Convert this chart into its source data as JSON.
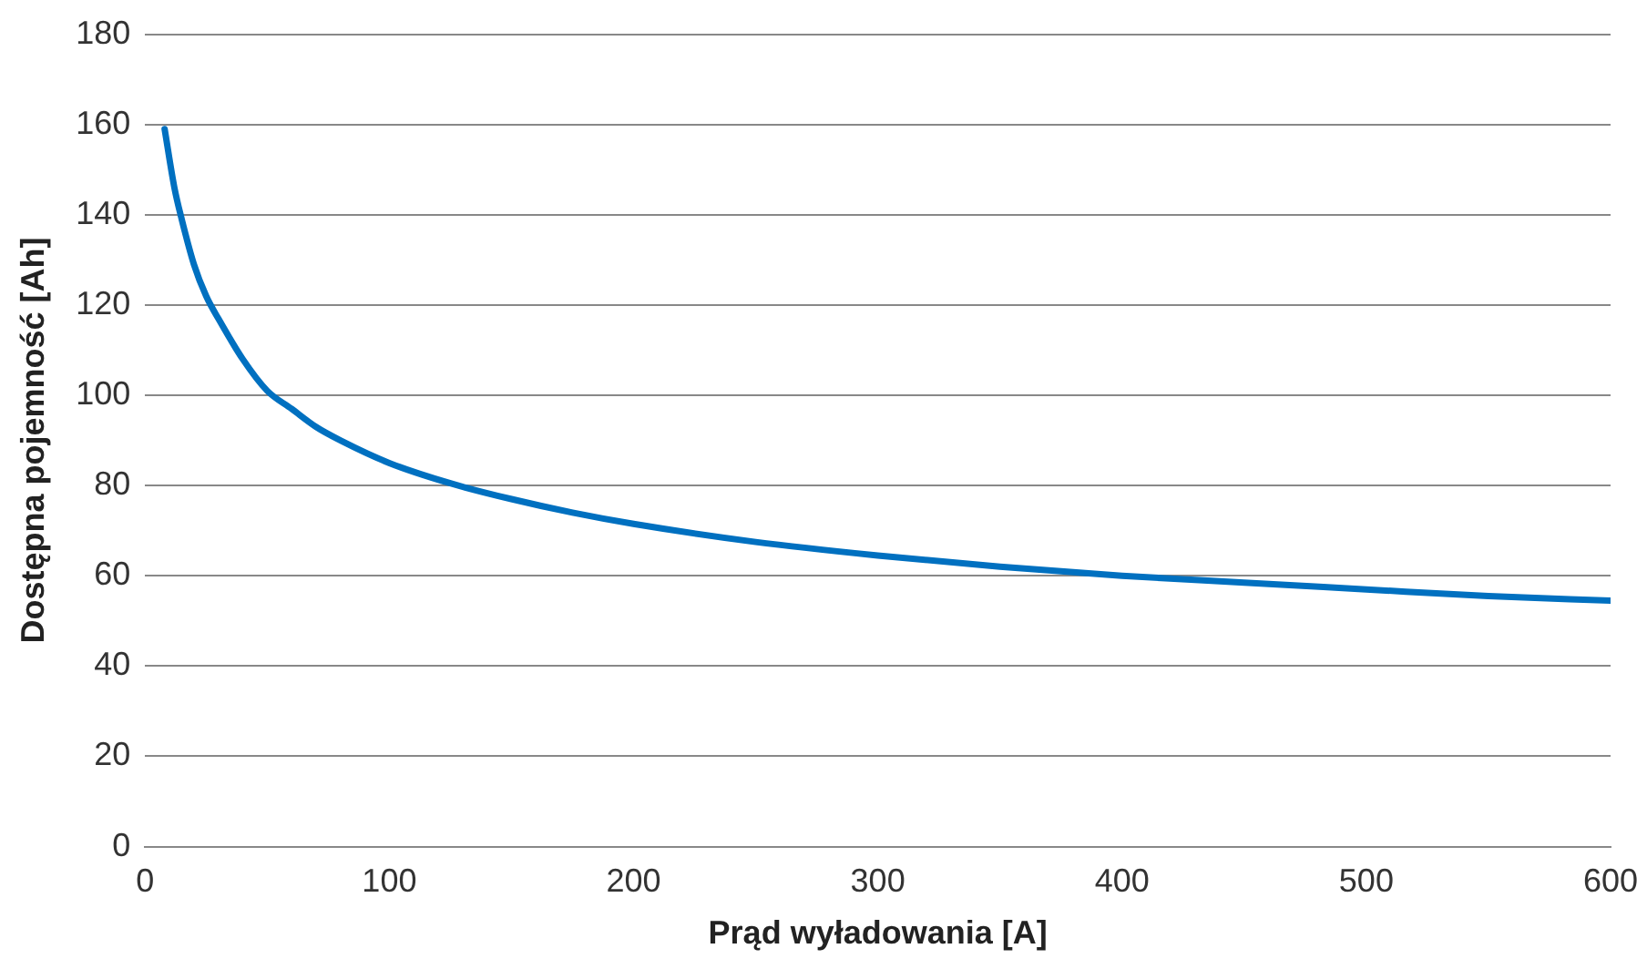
{
  "chart_data": {
    "type": "line",
    "xlabel": "Prąd wyładowania [A]",
    "ylabel": "Dostępna pojemność [Ah]",
    "x": [
      8,
      12,
      15,
      20,
      25,
      30,
      40,
      50,
      60,
      70,
      80,
      100,
      125,
      150,
      175,
      200,
      250,
      300,
      350,
      400,
      450,
      500,
      550,
      600
    ],
    "series": [
      {
        "color": "#0070c0",
        "values": [
          159,
          146,
          139,
          129,
          122,
          117,
          108,
          101,
          97,
          93,
          90,
          85,
          80.5,
          77,
          74,
          71.5,
          67.5,
          64.5,
          62,
          60,
          58.5,
          57,
          55.5,
          54.5
        ]
      }
    ],
    "xlim": [
      0,
      600
    ],
    "xticks": [
      0,
      100,
      200,
      300,
      400,
      500,
      600
    ],
    "ylim": [
      0,
      180
    ],
    "yticks": [
      0,
      20,
      40,
      60,
      80,
      100,
      120,
      140,
      160,
      180
    ],
    "grid": "y",
    "legend": false,
    "marker": "none",
    "line_style": "solid"
  }
}
